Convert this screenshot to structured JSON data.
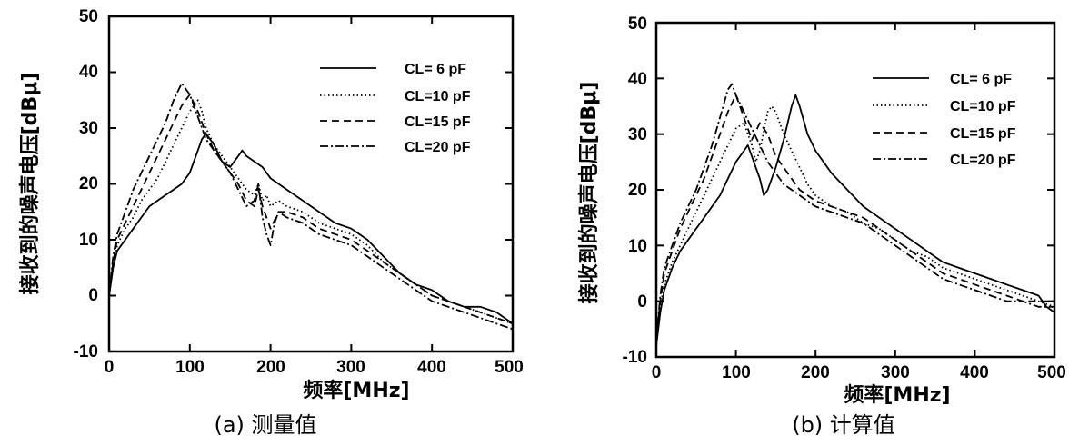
{
  "chart_data": [
    {
      "type": "line",
      "caption": "(a) 测量值",
      "xlabel": "频率[MHz]",
      "ylabel": "接收到的噪声电压[dBμ]",
      "xlim": [
        0,
        500
      ],
      "ylim": [
        -10,
        50
      ],
      "xticks": [
        0,
        100,
        200,
        300,
        400,
        500
      ],
      "yticks": [
        -10,
        0,
        10,
        20,
        30,
        40,
        50
      ],
      "grid": false,
      "legend_position": "top-right",
      "series": [
        {
          "name": "CL= 6 pF",
          "style": "solid",
          "x": [
            0,
            5,
            10,
            20,
            30,
            40,
            50,
            60,
            70,
            80,
            90,
            100,
            110,
            115,
            120,
            130,
            140,
            150,
            160,
            165,
            170,
            180,
            190,
            200,
            210,
            220,
            240,
            260,
            280,
            300,
            320,
            340,
            360,
            380,
            400,
            420,
            440,
            460,
            480,
            500
          ],
          "y": [
            0,
            5,
            8,
            10,
            12,
            14,
            16,
            17,
            18,
            19,
            20,
            22,
            26,
            28,
            29,
            27,
            24,
            23,
            25,
            26,
            25,
            24,
            23,
            21,
            20,
            19,
            17,
            15,
            13,
            12,
            10,
            7,
            4,
            2,
            1,
            -1,
            -2,
            -2,
            -3,
            -5
          ]
        },
        {
          "name": "CL=10 pF",
          "style": "dotted",
          "x": [
            0,
            5,
            10,
            20,
            30,
            40,
            50,
            60,
            70,
            80,
            90,
            100,
            110,
            115,
            120,
            130,
            140,
            150,
            160,
            170,
            180,
            185,
            190,
            195,
            200,
            210,
            220,
            240,
            260,
            280,
            300,
            320,
            340,
            360,
            380,
            400,
            420,
            440,
            460,
            480,
            500
          ],
          "y": [
            0,
            5,
            9,
            12,
            14,
            17,
            19,
            21,
            24,
            27,
            30,
            33,
            35,
            33,
            30,
            27,
            25,
            23,
            21,
            19,
            18,
            20,
            17,
            18,
            16,
            17,
            16,
            15,
            13,
            12,
            11,
            9,
            6,
            4,
            2,
            0,
            -1,
            -2,
            -3,
            -4,
            -5
          ]
        },
        {
          "name": "CL=15 pF",
          "style": "dashed",
          "x": [
            0,
            5,
            10,
            20,
            30,
            40,
            50,
            60,
            70,
            80,
            90,
            100,
            110,
            120,
            130,
            140,
            150,
            160,
            170,
            180,
            185,
            190,
            195,
            200,
            210,
            220,
            240,
            260,
            280,
            300,
            320,
            340,
            360,
            380,
            400,
            420,
            440,
            460,
            480,
            500
          ],
          "y": [
            0,
            6,
            10,
            13,
            16,
            19,
            22,
            25,
            28,
            31,
            34,
            36,
            33,
            29,
            26,
            24,
            22,
            20,
            17,
            16,
            19,
            16,
            14,
            12,
            15,
            15,
            14,
            12,
            11,
            10,
            8,
            6,
            4,
            2,
            0,
            -1,
            -2,
            -3,
            -4,
            -5
          ]
        },
        {
          "name": "CL=20 pF",
          "style": "dashdot",
          "x": [
            0,
            5,
            10,
            20,
            30,
            40,
            50,
            60,
            70,
            80,
            90,
            100,
            110,
            120,
            130,
            140,
            150,
            160,
            170,
            180,
            185,
            190,
            195,
            200,
            205,
            210,
            220,
            240,
            260,
            280,
            300,
            320,
            340,
            360,
            380,
            400,
            420,
            440,
            460,
            480,
            500
          ],
          "y": [
            0,
            7,
            11,
            15,
            19,
            22,
            25,
            28,
            31,
            35,
            38,
            36,
            32,
            28,
            26,
            24,
            22,
            19,
            16,
            17,
            20,
            14,
            11,
            9,
            13,
            15,
            14,
            13,
            11,
            10,
            9,
            7,
            5,
            3,
            1,
            -1,
            -2,
            -3,
            -4,
            -5,
            -6
          ]
        }
      ]
    },
    {
      "type": "line",
      "caption": "(b) 计算值",
      "xlabel": "频率[MHz]",
      "ylabel": "接收到的噪声电压[dBμ]",
      "xlim": [
        0,
        500
      ],
      "ylim": [
        -10,
        50
      ],
      "xticks": [
        0,
        100,
        200,
        300,
        400,
        500
      ],
      "yticks": [
        -10,
        0,
        10,
        20,
        30,
        40,
        50
      ],
      "grid": false,
      "legend_position": "top-right",
      "series": [
        {
          "name": "CL= 6 pF",
          "style": "solid",
          "x": [
            0,
            5,
            10,
            20,
            30,
            40,
            50,
            60,
            70,
            80,
            90,
            100,
            110,
            115,
            120,
            130,
            135,
            140,
            150,
            160,
            170,
            175,
            180,
            190,
            200,
            210,
            220,
            240,
            260,
            280,
            300,
            320,
            340,
            360,
            380,
            400,
            420,
            440,
            460,
            480,
            490,
            500
          ],
          "y": [
            -8,
            -2,
            2,
            6,
            9,
            11,
            13,
            15,
            17,
            19,
            22,
            25,
            27,
            28,
            26,
            22,
            19,
            20,
            24,
            29,
            35,
            37,
            35,
            30,
            27,
            25,
            23,
            20,
            17,
            15,
            13,
            11,
            9,
            7,
            6,
            5,
            4,
            3,
            2,
            1,
            -1,
            -2
          ]
        },
        {
          "name": "CL=10 pF",
          "style": "dotted",
          "x": [
            0,
            5,
            10,
            20,
            30,
            40,
            50,
            60,
            70,
            80,
            90,
            100,
            110,
            120,
            125,
            130,
            140,
            145,
            150,
            160,
            170,
            180,
            190,
            200,
            220,
            240,
            260,
            280,
            300,
            320,
            340,
            360,
            380,
            400,
            420,
            440,
            460,
            480,
            500
          ],
          "y": [
            -8,
            -1,
            3,
            7,
            10,
            13,
            16,
            19,
            22,
            25,
            28,
            31,
            32,
            28,
            25,
            27,
            34,
            35,
            34,
            30,
            27,
            24,
            21,
            19,
            17,
            16,
            14,
            13,
            11,
            9,
            8,
            6,
            5,
            4,
            3,
            2,
            1,
            0,
            -1
          ]
        },
        {
          "name": "CL=15 pF",
          "style": "dashed",
          "x": [
            0,
            5,
            10,
            20,
            30,
            40,
            50,
            60,
            70,
            80,
            90,
            100,
            110,
            120,
            130,
            140,
            150,
            160,
            170,
            180,
            190,
            200,
            220,
            240,
            260,
            280,
            300,
            320,
            340,
            360,
            380,
            400,
            420,
            440,
            460,
            480,
            500
          ],
          "y": [
            -7,
            0,
            5,
            9,
            13,
            16,
            19,
            22,
            26,
            30,
            34,
            37,
            33,
            29,
            32,
            30,
            26,
            24,
            22,
            20,
            19,
            18,
            17,
            16,
            15,
            13,
            11,
            9,
            7,
            5,
            4,
            3,
            2,
            1,
            0,
            0,
            0
          ]
        },
        {
          "name": "CL=20 pF",
          "style": "dashdot",
          "x": [
            0,
            5,
            10,
            20,
            30,
            40,
            50,
            60,
            70,
            80,
            90,
            95,
            100,
            110,
            120,
            130,
            140,
            150,
            160,
            170,
            180,
            190,
            200,
            220,
            240,
            260,
            280,
            300,
            320,
            340,
            360,
            380,
            400,
            420,
            440,
            460,
            480,
            500
          ],
          "y": [
            -7,
            1,
            6,
            10,
            14,
            17,
            20,
            24,
            28,
            33,
            38,
            39,
            37,
            34,
            31,
            28,
            25,
            23,
            21,
            20,
            19,
            18,
            17,
            16,
            15,
            14,
            12,
            10,
            8,
            6,
            4,
            3,
            2,
            1,
            0,
            0,
            -1,
            -1
          ]
        }
      ]
    }
  ]
}
